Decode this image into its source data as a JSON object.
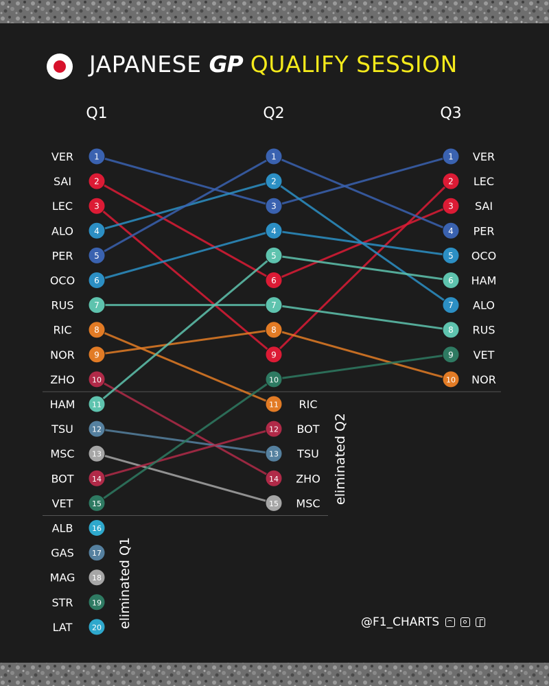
{
  "header": {
    "title_part1": "JAPANESE",
    "title_part2": "GP",
    "title_part3": "QUALIFY SESSION"
  },
  "footer": {
    "credit": "@F1_CHARTS",
    "social_icons": [
      "twitter-icon",
      "instagram-icon",
      "facebook-icon"
    ]
  },
  "colors": {
    "background": "#1c1c1c",
    "accent_yellow": "#f4ea1b",
    "text": "#ffffff",
    "separator": "#555555"
  },
  "chart_data": {
    "type": "bump",
    "title": "JAPANESE GP QUALIFY SESSION",
    "sessions": [
      "Q1",
      "Q2",
      "Q3"
    ],
    "eliminated_labels": {
      "Q1": "eliminated Q1",
      "Q2": "eliminated Q2"
    },
    "drivers": [
      {
        "code": "VER",
        "color": "#3a62b0",
        "positions": [
          1,
          3,
          1
        ]
      },
      {
        "code": "SAI",
        "color": "#dc1b35",
        "positions": [
          2,
          6,
          3
        ]
      },
      {
        "code": "LEC",
        "color": "#dc1b35",
        "positions": [
          3,
          9,
          2
        ]
      },
      {
        "code": "ALO",
        "color": "#2c8fc4",
        "positions": [
          4,
          2,
          7
        ]
      },
      {
        "code": "PER",
        "color": "#3a62b0",
        "positions": [
          5,
          1,
          4
        ]
      },
      {
        "code": "OCO",
        "color": "#2c8fc4",
        "positions": [
          6,
          4,
          5
        ]
      },
      {
        "code": "RUS",
        "color": "#5ec3ae",
        "positions": [
          7,
          7,
          8
        ]
      },
      {
        "code": "RIC",
        "color": "#e27b25",
        "positions": [
          8,
          11,
          null
        ]
      },
      {
        "code": "NOR",
        "color": "#e27b25",
        "positions": [
          9,
          8,
          10
        ]
      },
      {
        "code": "ZHO",
        "color": "#b02a48",
        "positions": [
          10,
          14,
          null
        ]
      },
      {
        "code": "HAM",
        "color": "#5ec3ae",
        "positions": [
          11,
          5,
          6
        ]
      },
      {
        "code": "TSU",
        "color": "#55809f",
        "positions": [
          12,
          13,
          null
        ]
      },
      {
        "code": "MSC",
        "color": "#a6a6a6",
        "positions": [
          13,
          15,
          null
        ]
      },
      {
        "code": "BOT",
        "color": "#b02a48",
        "positions": [
          14,
          12,
          null
        ]
      },
      {
        "code": "VET",
        "color": "#2e7a62",
        "positions": [
          15,
          10,
          9
        ]
      },
      {
        "code": "ALB",
        "color": "#2ea8cc",
        "positions": [
          16,
          null,
          null
        ]
      },
      {
        "code": "GAS",
        "color": "#55809f",
        "positions": [
          17,
          null,
          null
        ]
      },
      {
        "code": "MAG",
        "color": "#a6a6a6",
        "positions": [
          18,
          null,
          null
        ]
      },
      {
        "code": "STR",
        "color": "#2e7a62",
        "positions": [
          19,
          null,
          null
        ]
      },
      {
        "code": "LAT",
        "color": "#2ea8cc",
        "positions": [
          20,
          null,
          null
        ]
      }
    ]
  }
}
